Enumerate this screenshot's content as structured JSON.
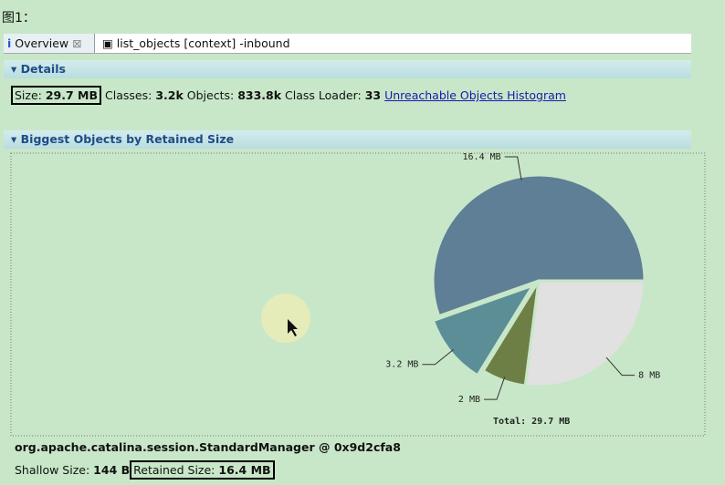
{
  "caption": "图1：",
  "tabs": [
    "Overview",
    "list_objects [context] -inbound"
  ],
  "details": {
    "title": "Details",
    "items": [
      {
        "label": "Size:",
        "value": "29.7 MB"
      },
      {
        "label": "Classes:",
        "value": "3.2k"
      },
      {
        "label": "Objects:",
        "value": "833.8k"
      },
      {
        "label": "Class Loader:",
        "value": "33"
      }
    ],
    "link": "Unreachable Objects Histogram"
  },
  "biggest": {
    "title": "Biggest Objects by Retained Size",
    "pie": {
      "slices": [
        {
          "value": 16.4,
          "label": "16.4 MB",
          "color": "#5e7f95"
        },
        {
          "value": 3.2,
          "label": "3.2 MB",
          "color": "#5b8e96"
        },
        {
          "value": 2,
          "label": "2 MB",
          "color": "#6e7f45"
        },
        {
          "value": 8,
          "label": "8 MB",
          "color": "#e1e1e1"
        }
      ],
      "total_label": "Total: 29.7 MB"
    },
    "object": "org.apache.catalina.session.StandardManager @ 0x9d2cfa8",
    "shallow": {
      "label": "Shallow Size:",
      "value": "144 B"
    },
    "retained": {
      "label": "Retained Size:",
      "value": "16.4 MB"
    }
  }
}
